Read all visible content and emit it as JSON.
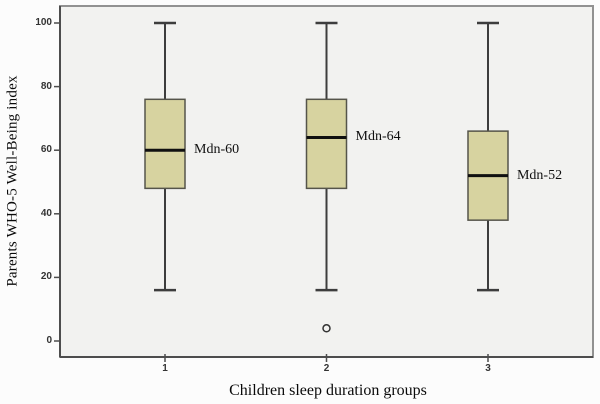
{
  "chart_data": {
    "type": "boxplot",
    "title": "",
    "xlabel": "Children sleep duration groups",
    "ylabel": "Parents WHO-5 Well-Being index",
    "ylim": [
      0,
      100
    ],
    "yticks": [
      0,
      20,
      40,
      60,
      80,
      100
    ],
    "categories": [
      "1",
      "2",
      "3"
    ],
    "boxes": [
      {
        "category": "1",
        "whisker_low": 16,
        "q1": 48,
        "median": 60,
        "q3": 76,
        "whisker_high": 100,
        "label": "Mdn-60",
        "outliers": []
      },
      {
        "category": "2",
        "whisker_low": 16,
        "q1": 48,
        "median": 64,
        "q3": 76,
        "whisker_high": 100,
        "label": "Mdn-64",
        "outliers": [
          4
        ]
      },
      {
        "category": "3",
        "whisker_low": 16,
        "q1": 38,
        "median": 52,
        "q3": 66,
        "whisker_high": 100,
        "label": "Mdn-52",
        "outliers": []
      }
    ],
    "legend": null,
    "grid": false,
    "outlier_marker": "open-circle",
    "colors": {
      "plot_bg": "#f2f2f0",
      "plot_border": "#919191",
      "axis": "#4d4d4d",
      "box_fill": "#d7d3a0",
      "box_border": "#55544a",
      "median": "#101010",
      "whisker": "#3d3d3d",
      "outlier": "#333333",
      "tick_label": "#333333",
      "title_text": "#0a0a0a"
    }
  }
}
